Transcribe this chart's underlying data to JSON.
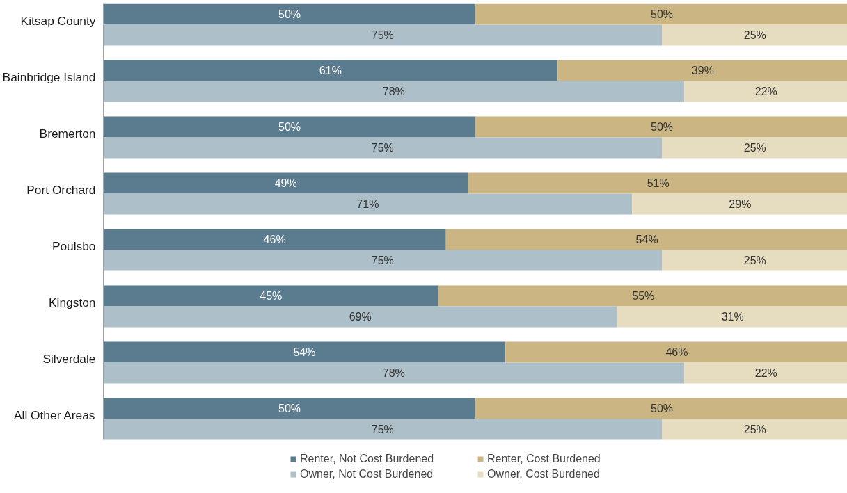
{
  "chart_data": {
    "type": "bar",
    "orientation": "horizontal",
    "stacked": true,
    "xlim": [
      0,
      100
    ],
    "tick_labels": "y",
    "legend": "bottom",
    "grid": false,
    "categories": [
      "Kitsap County",
      null,
      "Bainbridge Island",
      null,
      "Bremerton",
      null,
      "Port Orchard",
      null,
      "Poulsbo",
      null,
      "Kingston",
      null,
      "Silverdale",
      null,
      "All Other Areas",
      null
    ],
    "series": [
      {
        "name": "Renter, Not Cost Burdened",
        "color": "#5b7b8f",
        "values": [
          50,
          null,
          61,
          null,
          50,
          null,
          49,
          null,
          46,
          null,
          45,
          null,
          54,
          null,
          50,
          null
        ],
        "value_labels": [
          "50%",
          null,
          "61%",
          null,
          "50%",
          null,
          "49%",
          null,
          "46%",
          null,
          "45%",
          null,
          "54%",
          null,
          "50%",
          null
        ]
      },
      {
        "name": "Renter, Cost Burdened",
        "color": "#cbb683",
        "values": [
          50,
          null,
          39,
          null,
          50,
          null,
          51,
          null,
          54,
          null,
          55,
          null,
          46,
          null,
          50,
          null
        ],
        "value_labels": [
          "50%",
          null,
          "39%",
          null,
          "50%",
          null,
          "51%",
          null,
          "54%",
          null,
          "55%",
          null,
          "46%",
          null,
          "50%",
          null
        ]
      },
      {
        "name": "Owner, Not Cost Burdened",
        "color": "#adbfc8",
        "values": [
          null,
          75,
          null,
          78,
          null,
          75,
          null,
          71,
          null,
          75,
          null,
          69,
          null,
          78,
          null,
          75
        ],
        "value_labels": [
          null,
          "75%",
          null,
          "78%",
          null,
          "75%",
          null,
          "71%",
          null,
          "75%",
          null,
          "69%",
          null,
          "78%",
          null,
          "75%"
        ]
      },
      {
        "name": "Owner, Cost Burdened",
        "color": "#e6dcc0",
        "values": [
          null,
          25,
          null,
          22,
          null,
          25,
          null,
          29,
          null,
          25,
          null,
          31,
          null,
          22,
          null,
          25
        ],
        "value_labels": [
          null,
          "25%",
          null,
          "22%",
          null,
          "25%",
          null,
          "29%",
          null,
          "25%",
          null,
          "31%",
          null,
          "22%",
          null,
          "25%"
        ]
      }
    ]
  }
}
